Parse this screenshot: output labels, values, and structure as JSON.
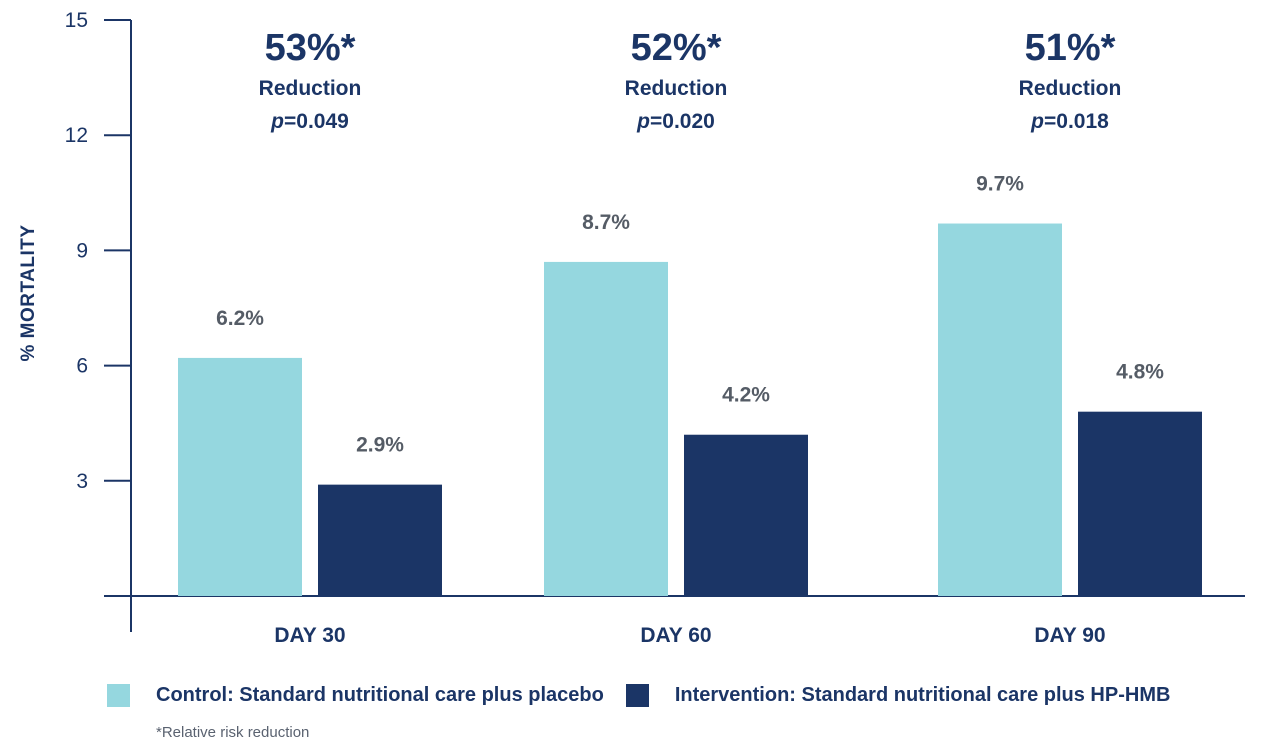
{
  "chart_data": {
    "type": "bar",
    "ylabel": "% MORTALITY",
    "ylim": [
      0,
      15
    ],
    "yticks": [
      3,
      6,
      9,
      12,
      15
    ],
    "categories": [
      "DAY 30",
      "DAY 60",
      "DAY 90"
    ],
    "series": [
      {
        "name": "Control: Standard nutritional care plus placebo",
        "color": "#95d7df",
        "values": [
          6.2,
          8.7,
          9.7
        ],
        "labels": [
          "6.2%",
          "8.7%",
          "9.7%"
        ]
      },
      {
        "name": "Intervention: Standard nutritional care plus HP-HMB",
        "color": "#1b3566",
        "values": [
          2.9,
          4.2,
          4.8
        ],
        "labels": [
          "2.9%",
          "4.2%",
          "4.8%"
        ]
      }
    ],
    "annotations": [
      {
        "pct": "53%*",
        "label": "Reduction",
        "p_prefix": "p",
        "p_value": "=0.049"
      },
      {
        "pct": "52%*",
        "label": "Reduction",
        "p_prefix": "p",
        "p_value": "=0.020"
      },
      {
        "pct": "51%*",
        "label": "Reduction",
        "p_prefix": "p",
        "p_value": "=0.018"
      }
    ],
    "footnote": "*Relative risk reduction"
  }
}
